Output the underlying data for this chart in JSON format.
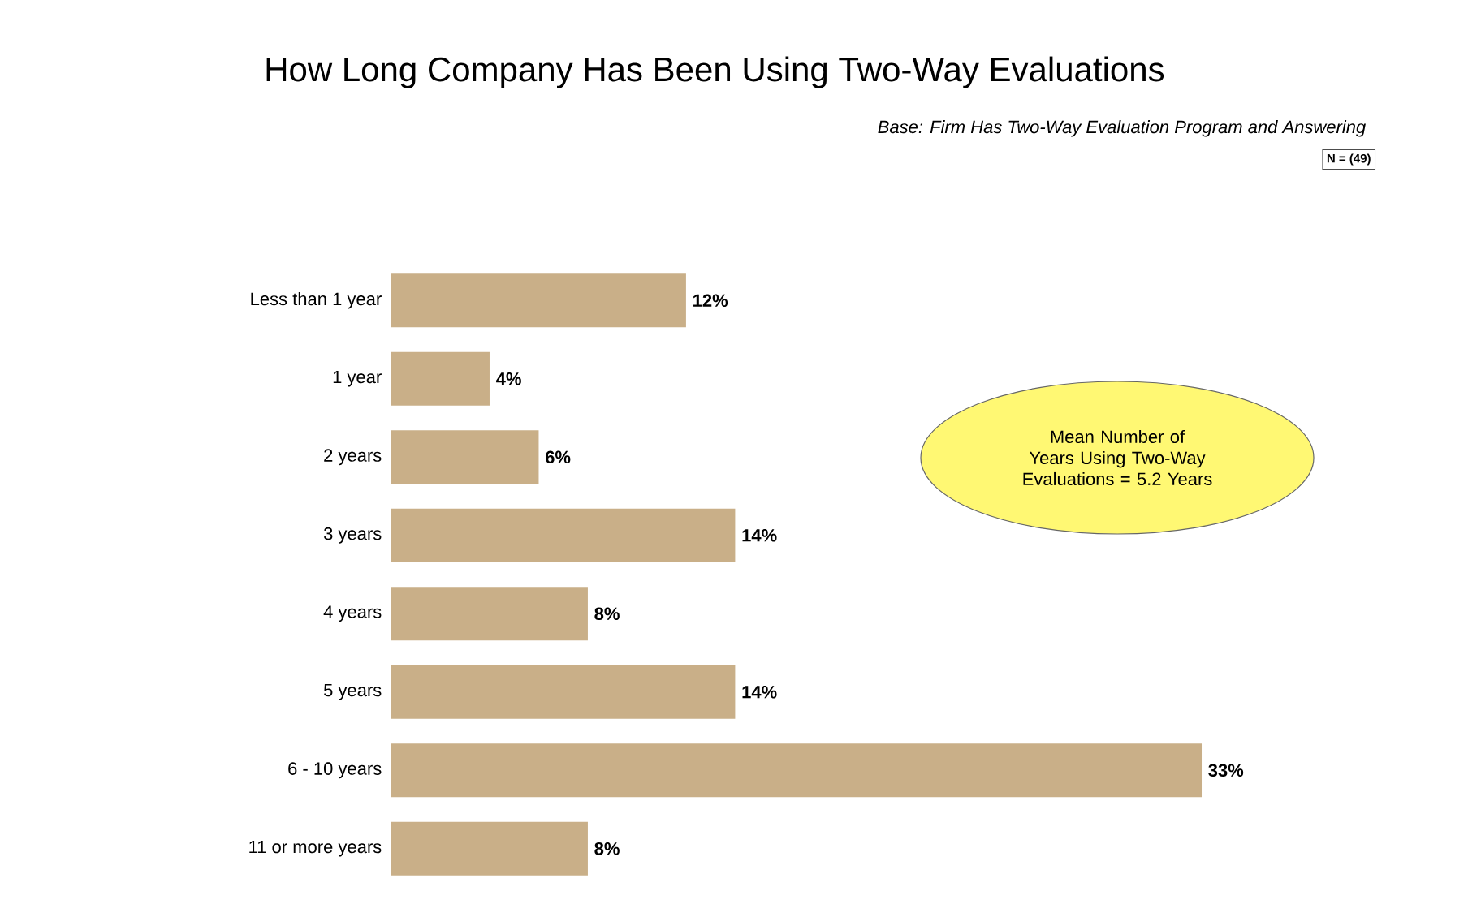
{
  "chart_data": {
    "type": "bar",
    "orientation": "horizontal",
    "title": "How Long Company Has Been Using Two-Way Evaluations",
    "subtitle": "Base:  Firm Has Two-Way Evaluation Program and Answering",
    "categories": [
      "Less than 1 year",
      "1 year",
      "2 years",
      "3 years",
      "4 years",
      "5 years",
      "6 - 10 years",
      "11 or more years"
    ],
    "values": [
      12,
      4,
      6,
      14,
      8,
      14,
      33,
      8
    ],
    "value_labels": [
      "12%",
      "4%",
      "6%",
      "14%",
      "8%",
      "14%",
      "33%",
      "8%"
    ],
    "color": "#c9af88",
    "annotations": [
      "N =  (49)",
      "Mean Number of Years Using Two-Way Evaluations = 5.2 Years"
    ],
    "legend": false
  }
}
